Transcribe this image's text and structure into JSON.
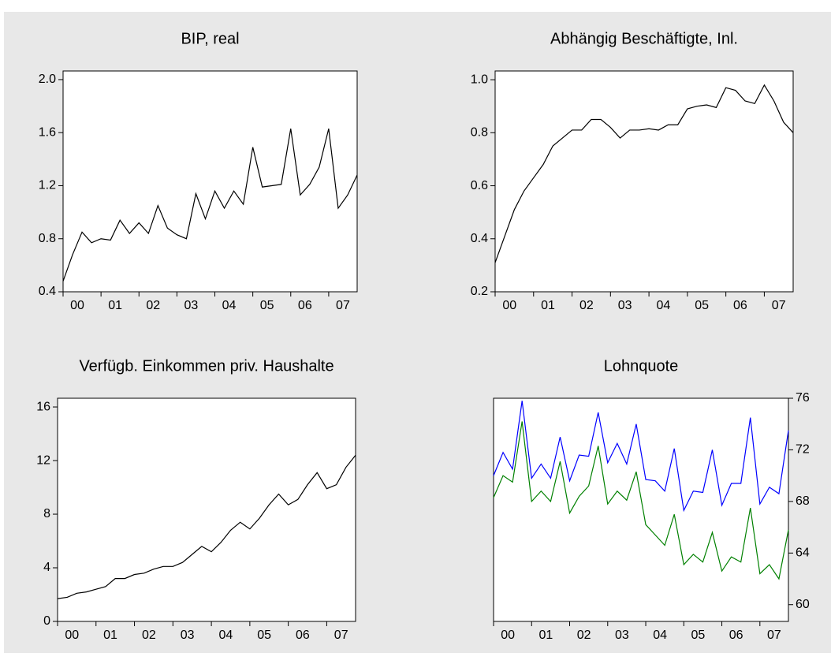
{
  "chart_data": [
    {
      "type": "line",
      "title": "BIP, real",
      "categories": [
        "00",
        null,
        null,
        null,
        "01",
        null,
        null,
        null,
        "02",
        null,
        null,
        null,
        "03",
        null,
        null,
        null,
        "04",
        null,
        null,
        null,
        "05",
        null,
        null,
        null,
        "06",
        null,
        null,
        null,
        "07",
        null,
        null,
        null
      ],
      "series": [
        {
          "color": "#000000",
          "values": [
            0.48,
            0.68,
            0.85,
            0.77,
            0.8,
            0.79,
            0.94,
            0.84,
            0.92,
            0.84,
            1.05,
            0.88,
            0.83,
            0.8,
            1.14,
            0.95,
            1.16,
            1.03,
            1.16,
            1.06,
            1.49,
            1.19,
            1.2,
            1.21,
            1.63,
            1.13,
            1.21,
            1.34,
            1.63,
            1.03,
            1.13,
            1.28
          ]
        }
      ],
      "ylim": [
        0.4,
        2.065
      ],
      "yticks": [
        0.4,
        0.8,
        1.2,
        1.6,
        {
          "value": 2,
          "label": "2.0"
        }
      ]
    },
    {
      "type": "line",
      "title": "Abhängig Beschäftigte, Inl.",
      "categories": [
        "00",
        null,
        null,
        null,
        "01",
        null,
        null,
        null,
        "02",
        null,
        null,
        null,
        "03",
        null,
        null,
        null,
        "04",
        null,
        null,
        null,
        "05",
        null,
        null,
        null,
        "06",
        null,
        null,
        null,
        "07",
        null,
        null,
        null
      ],
      "series": [
        {
          "color": "#000000",
          "values": [
            0.31,
            0.41,
            0.51,
            0.58,
            0.63,
            0.68,
            0.75,
            0.78,
            0.81,
            0.81,
            0.85,
            0.85,
            0.82,
            0.78,
            0.81,
            0.81,
            0.815,
            0.81,
            0.83,
            0.83,
            0.89,
            0.9,
            0.905,
            0.895,
            0.97,
            0.96,
            0.92,
            0.91,
            0.98,
            0.92,
            0.84,
            0.8
          ]
        }
      ],
      "ylim": [
        0.2,
        1.033
      ],
      "yticks": [
        0.2,
        0.4,
        0.6,
        0.8,
        {
          "value": 1,
          "label": "1.0"
        }
      ]
    },
    {
      "type": "line",
      "title": "Verfügb. Einkommen priv. Haushalte",
      "categories": [
        "00",
        null,
        null,
        null,
        "01",
        null,
        null,
        null,
        "02",
        null,
        null,
        null,
        "03",
        null,
        null,
        null,
        "04",
        null,
        null,
        null,
        "05",
        null,
        null,
        null,
        "06",
        null,
        null,
        null,
        "07",
        null,
        null,
        null
      ],
      "series": [
        {
          "color": "#000000",
          "values": [
            1.7,
            1.8,
            2.1,
            2.2,
            2.4,
            2.6,
            3.2,
            3.2,
            3.5,
            3.6,
            3.9,
            4.1,
            4.1,
            4.4,
            5.0,
            5.6,
            5.2,
            5.9,
            6.8,
            7.4,
            6.9,
            7.7,
            8.7,
            9.5,
            8.7,
            9.1,
            10.2,
            11.1,
            9.9,
            10.2,
            11.5,
            12.4
          ]
        }
      ],
      "ylim": [
        0,
        16.65
      ],
      "yticks": [
        0,
        4,
        8,
        12,
        16
      ]
    },
    {
      "type": "line",
      "title": "Lohnquote",
      "categories": [
        "00",
        null,
        null,
        null,
        "01",
        null,
        null,
        null,
        "02",
        null,
        null,
        null,
        "03",
        null,
        null,
        null,
        "04",
        null,
        null,
        null,
        "05",
        null,
        null,
        null,
        "06",
        null,
        null,
        null,
        "07",
        null,
        null,
        null
      ],
      "series": [
        {
          "color": "#0000ff",
          "axis": "y2",
          "values": [
            70.0,
            71.8,
            70.5,
            75.8,
            69.8,
            70.9,
            69.8,
            73.0,
            69.6,
            71.6,
            71.5,
            74.9,
            71.0,
            72.5,
            70.9,
            74.0,
            69.7,
            69.6,
            68.8,
            72.1,
            67.3,
            68.8,
            68.7,
            72.0,
            67.7,
            69.4,
            69.4,
            74.5,
            67.8,
            69.1,
            68.6,
            73.5
          ]
        },
        {
          "color": "#008000",
          "axis": "y2",
          "values": [
            68.3,
            70.0,
            69.5,
            74.2,
            68.0,
            68.8,
            68.0,
            71.1,
            67.1,
            68.4,
            69.2,
            72.3,
            67.8,
            68.8,
            68.1,
            70.3,
            66.2,
            65.4,
            64.6,
            67.0,
            63.1,
            63.9,
            63.3,
            65.6,
            62.6,
            63.7,
            63.3,
            67.5,
            62.4,
            63.1,
            62.0,
            65.8
          ]
        }
      ],
      "y2lim": [
        58.7,
        76
      ],
      "y2ticks": [
        60,
        64,
        68,
        72,
        76
      ]
    }
  ]
}
